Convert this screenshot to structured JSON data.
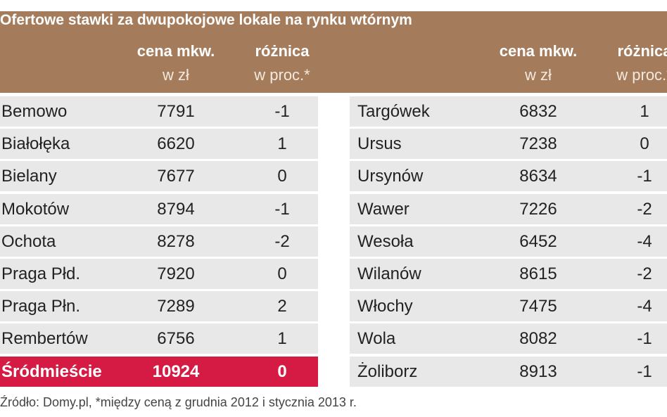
{
  "header": {
    "title": "Ofertowe stawki za dwupokojowe lokale na rynku wtórnym",
    "columns": [
      {
        "label": "cena mkw.",
        "unit": "w zł"
      },
      {
        "label": "różnica",
        "unit": "w proc.*"
      }
    ]
  },
  "tables": [
    {
      "rows": [
        [
          "Bemowo",
          7791,
          -1
        ],
        [
          "Białołęka",
          6620,
          1
        ],
        [
          "Bielany",
          7677,
          0
        ],
        [
          "Mokotów",
          8794,
          -1
        ],
        [
          "Ochota",
          8278,
          -2
        ],
        [
          "Praga Płd.",
          7920,
          0
        ],
        [
          "Praga Płn.",
          7289,
          2
        ],
        [
          "Rembertów",
          6756,
          1
        ],
        [
          "Śródmieście",
          10924,
          0
        ]
      ],
      "highlight_row": 8
    },
    {
      "rows": [
        [
          "Targówek",
          6832,
          1
        ],
        [
          "Ursus",
          7238,
          0
        ],
        [
          "Ursynów",
          8634,
          -1
        ],
        [
          "Wawer",
          7226,
          -2
        ],
        [
          "Wesoła",
          6452,
          -4
        ],
        [
          "Wilanów",
          8615,
          -2
        ],
        [
          "Włochy",
          7475,
          -4
        ],
        [
          "Wola",
          8082,
          -1
        ],
        [
          "Żoliborz",
          8913,
          -1
        ]
      ]
    }
  ],
  "footer": "Źródło: Domy.pl, *między ceną z grudnia 2012 i stycznia 2013 r."
}
